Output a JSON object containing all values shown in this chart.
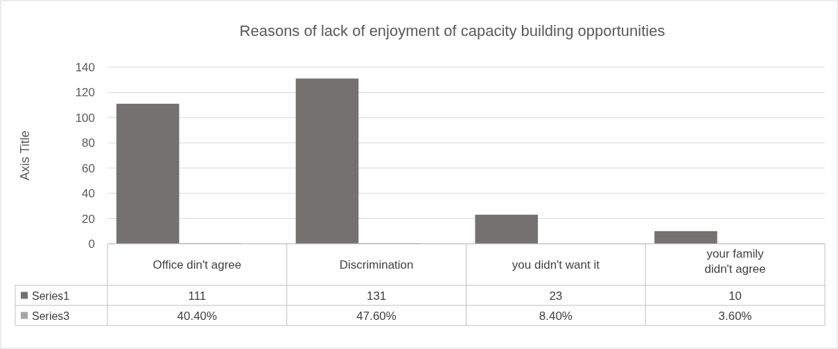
{
  "chart_data": {
    "type": "bar",
    "title": "Reasons of lack of enjoyment of capacity building opportunities",
    "ylabel": "Axis Title",
    "categories": [
      "Office din't agree",
      "Discrimination",
      "you didn't want it",
      "your family didn't agree"
    ],
    "series": [
      {
        "name": "Series1",
        "color": "#767171",
        "values": [
          111,
          131,
          23,
          10
        ],
        "value_labels": [
          "111",
          "131",
          "23",
          "10"
        ]
      },
      {
        "name": "Series3",
        "color": "#a5a5a5",
        "values": [
          0.404,
          0.476,
          0.084,
          0.036
        ],
        "value_labels": [
          "40.40%",
          "47.60%",
          "8.40%",
          "3.60%"
        ]
      }
    ],
    "ylim": [
      0,
      140
    ],
    "yticks": [
      0,
      20,
      40,
      60,
      80,
      100,
      120,
      140
    ],
    "grid": "y",
    "legend": "bottom"
  }
}
